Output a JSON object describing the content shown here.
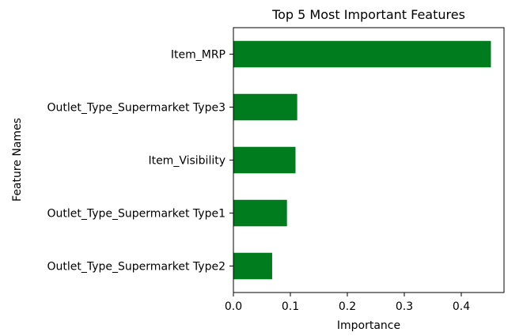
{
  "chart_data": {
    "type": "bar",
    "orientation": "horizontal",
    "title": "Top 5 Most Important Features",
    "xlabel": "Importance",
    "ylabel": "Feature Names",
    "categories": [
      "Item_MRP",
      "Outlet_Type_Supermarket Type3",
      "Item_Visibility",
      "Outlet_Type_Supermarket Type1",
      "Outlet_Type_Supermarket Type2"
    ],
    "values": [
      0.452,
      0.112,
      0.109,
      0.094,
      0.068
    ],
    "xlim": [
      0.0,
      0.475
    ],
    "xticks": [
      0.0,
      0.1,
      0.2,
      0.3,
      0.4
    ],
    "xtick_labels": [
      "0.0",
      "0.1",
      "0.2",
      "0.3",
      "0.4"
    ],
    "bar_color": "#007c1e",
    "grid": false,
    "legend": "none"
  }
}
